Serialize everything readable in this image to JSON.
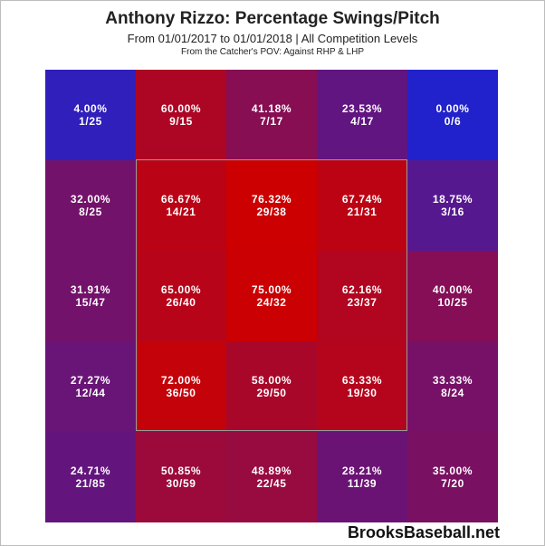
{
  "header": {
    "title": "Anthony Rizzo: Percentage Swings/Pitch",
    "subtitle": "From 01/01/2017 to 01/01/2018 | All Competition Levels",
    "subtitle2": "From the Catcher's POV:  Against RHP & LHP"
  },
  "brand": "BrooksBaseball.net",
  "chart_data": {
    "type": "heatmap",
    "title": "Anthony Rizzo: Percentage Swings/Pitch",
    "rows": 5,
    "cols": 5,
    "colors": {
      "low": "#2222cc",
      "high": "#cc0000"
    },
    "cells": [
      [
        {
          "pct": "4.00%",
          "frac": "1/25",
          "value": 4.0
        },
        {
          "pct": "60.00%",
          "frac": "9/15",
          "value": 60.0
        },
        {
          "pct": "41.18%",
          "frac": "7/17",
          "value": 41.18
        },
        {
          "pct": "23.53%",
          "frac": "4/17",
          "value": 23.53
        },
        {
          "pct": "0.00%",
          "frac": "0/6",
          "value": 0.0
        }
      ],
      [
        {
          "pct": "32.00%",
          "frac": "8/25",
          "value": 32.0
        },
        {
          "pct": "66.67%",
          "frac": "14/21",
          "value": 66.67
        },
        {
          "pct": "76.32%",
          "frac": "29/38",
          "value": 76.32
        },
        {
          "pct": "67.74%",
          "frac": "21/31",
          "value": 67.74
        },
        {
          "pct": "18.75%",
          "frac": "3/16",
          "value": 18.75
        }
      ],
      [
        {
          "pct": "31.91%",
          "frac": "15/47",
          "value": 31.91
        },
        {
          "pct": "65.00%",
          "frac": "26/40",
          "value": 65.0
        },
        {
          "pct": "75.00%",
          "frac": "24/32",
          "value": 75.0
        },
        {
          "pct": "62.16%",
          "frac": "23/37",
          "value": 62.16
        },
        {
          "pct": "40.00%",
          "frac": "10/25",
          "value": 40.0
        }
      ],
      [
        {
          "pct": "27.27%",
          "frac": "12/44",
          "value": 27.27
        },
        {
          "pct": "72.00%",
          "frac": "36/50",
          "value": 72.0
        },
        {
          "pct": "58.00%",
          "frac": "29/50",
          "value": 58.0
        },
        {
          "pct": "63.33%",
          "frac": "19/30",
          "value": 63.33
        },
        {
          "pct": "33.33%",
          "frac": "8/24",
          "value": 33.33
        }
      ],
      [
        {
          "pct": "24.71%",
          "frac": "21/85",
          "value": 24.71
        },
        {
          "pct": "50.85%",
          "frac": "30/59",
          "value": 50.85
        },
        {
          "pct": "48.89%",
          "frac": "22/45",
          "value": 48.89
        },
        {
          "pct": "28.21%",
          "frac": "11/39",
          "value": 28.21
        },
        {
          "pct": "35.00%",
          "frac": "7/20",
          "value": 35.0
        }
      ]
    ]
  }
}
